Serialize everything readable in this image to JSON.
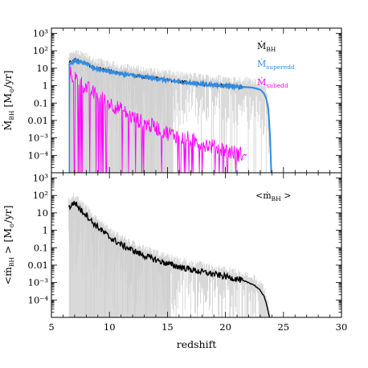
{
  "chart_data": [
    {
      "type": "line",
      "panel": "top",
      "ylabel": "Ṁ_BH [M⊙/yr]",
      "ylabel_main": "Ṁ",
      "ylabel_sub": "BH",
      "ylabel_unit": "[M",
      "ylabel_unit2": "/yr]",
      "yscale": "log",
      "xlim": [
        5,
        30
      ],
      "ylim": [
        1e-05,
        2000
      ],
      "ytick_values": [
        0.0001,
        0.001,
        0.01,
        0.1,
        1,
        10,
        100,
        1000
      ],
      "ytick_labels": [
        "10⁻⁴",
        "10⁻³",
        "0.01",
        "0.1",
        "1",
        "10",
        "10²",
        "10³"
      ],
      "legend": [
        {
          "main": "Ṁ",
          "sub": "BH",
          "color": "#000000"
        },
        {
          "main": "Ṁ",
          "sub": "superedd",
          "color": "#2f8de4"
        },
        {
          "main": "Ṁ",
          "sub": "subedd",
          "color": "#ff00ff"
        }
      ],
      "legend_position": "top-right",
      "series": [
        {
          "name": "Ṁ_BH",
          "color": "#000000",
          "x": [
            6.5,
            7,
            7.5,
            8,
            8.5,
            9,
            10,
            11,
            12,
            13,
            14,
            15,
            16,
            17,
            18,
            19,
            20,
            21,
            22,
            22.5,
            23,
            23.3,
            23.5,
            23.7,
            23.85,
            23.95
          ],
          "y": [
            20,
            30,
            25,
            20,
            12,
            10,
            7,
            5,
            4,
            3.2,
            2.6,
            2.1,
            1.7,
            1.45,
            1.25,
            1.1,
            1.0,
            0.9,
            0.82,
            0.75,
            0.6,
            0.4,
            0.2,
            0.05,
            0.001,
            1e-05
          ]
        },
        {
          "name": "Ṁ_superedd",
          "color": "#2f8de4",
          "x": [
            6.5,
            7,
            7.5,
            8,
            8.5,
            9,
            10,
            11,
            12,
            13,
            14,
            15,
            16,
            17,
            18,
            19,
            20,
            21,
            22,
            22.5,
            23,
            23.3,
            23.5,
            23.7,
            23.85,
            23.95
          ],
          "y": [
            18,
            25,
            22,
            18,
            11,
            9,
            6.5,
            4.8,
            3.8,
            3.1,
            2.5,
            2.0,
            1.65,
            1.4,
            1.22,
            1.08,
            0.98,
            0.88,
            0.8,
            0.73,
            0.58,
            0.38,
            0.19,
            0.045,
            0.001,
            1e-05
          ]
        },
        {
          "name": "Ṁ_subedd",
          "color": "#ff00ff",
          "x": [
            6.6,
            7,
            7.5,
            8,
            9,
            10,
            11,
            12,
            13,
            14,
            15,
            16,
            17,
            18,
            19,
            20,
            21,
            21.8
          ],
          "y": [
            5,
            3,
            1.5,
            0.8,
            0.25,
            0.1,
            0.04,
            0.015,
            0.007,
            0.004,
            0.002,
            0.0012,
            0.0008,
            0.0005,
            0.0003,
            0.0002,
            0.00012,
            0.0001
          ]
        }
      ]
    },
    {
      "type": "line",
      "panel": "bottom",
      "xlabel": "redshift",
      "ylabel": "<ṁ_BH> [M⊙/yr]",
      "ylabel_main": "<ṁ",
      "ylabel_sub": "BH",
      "ylabel_unit": "> [M",
      "ylabel_unit2": "/yr]",
      "yscale": "log",
      "xlim": [
        5,
        30
      ],
      "ylim": [
        1e-05,
        2000
      ],
      "xtick_values": [
        5,
        10,
        15,
        20,
        25,
        30
      ],
      "xtick_labels": [
        "5",
        "10",
        "15",
        "20",
        "25",
        "30"
      ],
      "ytick_values": [
        0.0001,
        0.001,
        0.01,
        0.1,
        1,
        10,
        100,
        1000
      ],
      "ytick_labels": [
        "10⁻⁴",
        "10⁻³",
        "0.01",
        "0.1",
        "1",
        "10",
        "10²",
        "10³"
      ],
      "legend": [
        {
          "main": "<ṁ",
          "sub": "BH",
          "tail": " >",
          "color": "#000000"
        }
      ],
      "legend_position": "top-right",
      "series": [
        {
          "name": "<ṁ_BH>",
          "color": "#000000",
          "x": [
            6.5,
            7,
            7.5,
            8,
            8.5,
            9,
            10,
            11,
            12,
            13,
            14,
            15,
            16,
            17,
            18,
            19,
            20,
            21,
            22,
            22.5,
            23,
            23.3,
            23.5,
            23.7,
            23.8
          ],
          "y": [
            20,
            40,
            15,
            8,
            3,
            1.5,
            0.4,
            0.15,
            0.07,
            0.035,
            0.02,
            0.012,
            0.008,
            0.0055,
            0.004,
            0.003,
            0.0022,
            0.0016,
            0.001,
            0.0007,
            0.00035,
            0.00018,
            7e-05,
            2e-05,
            1e-05
          ]
        }
      ]
    }
  ]
}
